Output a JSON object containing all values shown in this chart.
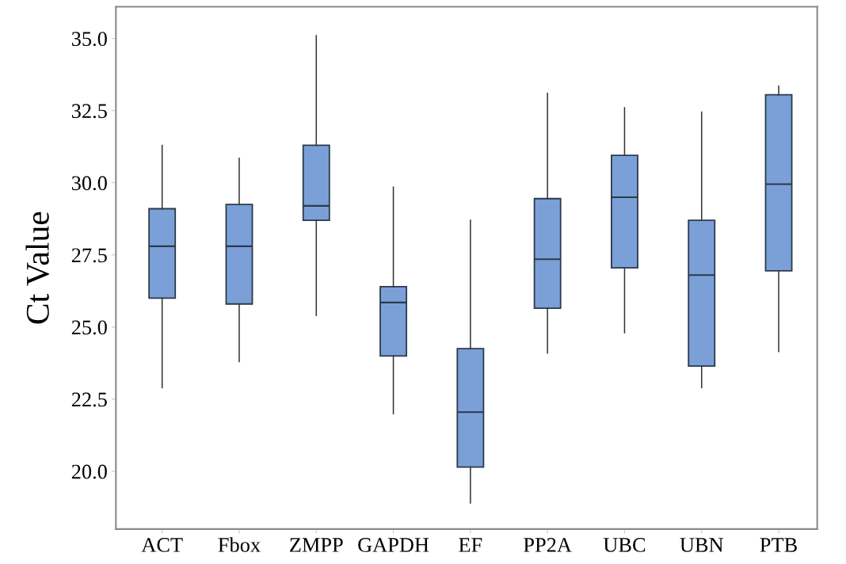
{
  "chart_data": {
    "type": "box",
    "ylabel": "Ct Value",
    "categories": [
      "ACT",
      "Fbox",
      "ZMPP",
      "GAPDH",
      "EF",
      "PP2A",
      "UBC",
      "UBN",
      "PTB"
    ],
    "boxes": [
      {
        "low": 22.9,
        "q1": 26.0,
        "median": 27.8,
        "q3": 29.1,
        "high": 31.3
      },
      {
        "low": 23.8,
        "q1": 25.8,
        "median": 27.8,
        "q3": 29.25,
        "high": 30.85
      },
      {
        "low": 25.4,
        "q1": 28.7,
        "median": 29.2,
        "q3": 31.3,
        "high": 35.1
      },
      {
        "low": 22.0,
        "q1": 24.0,
        "median": 25.85,
        "q3": 26.4,
        "high": 29.85
      },
      {
        "low": 18.9,
        "q1": 20.15,
        "median": 22.05,
        "q3": 24.25,
        "high": 28.7
      },
      {
        "low": 24.1,
        "q1": 25.65,
        "median": 27.35,
        "q3": 29.45,
        "high": 33.1
      },
      {
        "low": 24.8,
        "q1": 27.05,
        "median": 29.5,
        "q3": 30.95,
        "high": 32.6
      },
      {
        "low": 22.9,
        "q1": 23.65,
        "median": 26.8,
        "q3": 28.7,
        "high": 32.45
      },
      {
        "low": 24.15,
        "q1": 26.95,
        "median": 29.95,
        "q3": 33.05,
        "high": 33.35
      }
    ],
    "color": "#7ba0d8",
    "ylim": [
      18.0,
      36.1
    ],
    "yticks": [
      {
        "value": 20,
        "label": "20.0"
      },
      {
        "value": 22.5,
        "label": "22.5"
      },
      {
        "value": 25,
        "label": "25.0"
      },
      {
        "value": 27.5,
        "label": "27.5"
      },
      {
        "value": 30,
        "label": "30.0"
      },
      {
        "value": 32.5,
        "label": "32.5"
      },
      {
        "value": 35,
        "label": "35.0"
      }
    ],
    "grid": false
  }
}
